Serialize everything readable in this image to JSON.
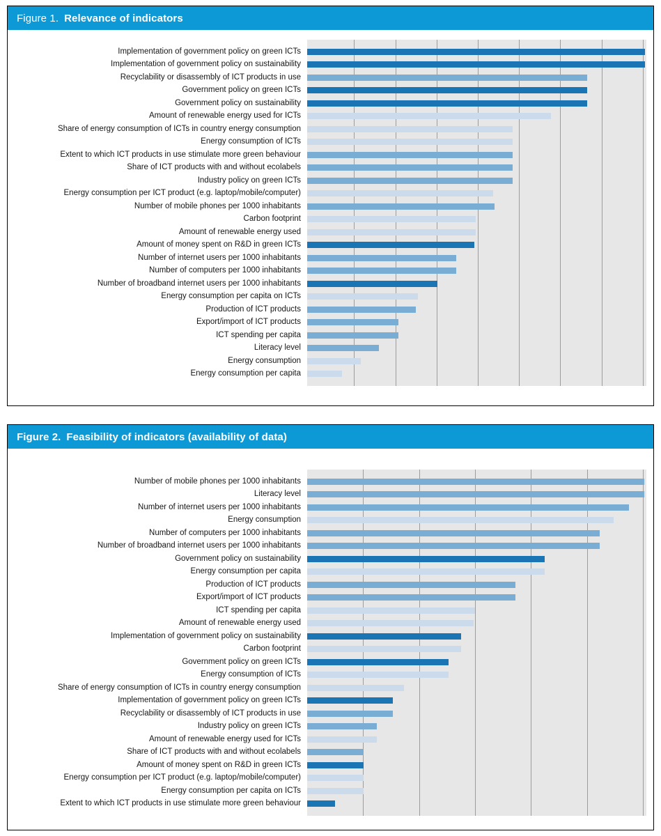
{
  "palette": {
    "header_blue": "#0d99d6",
    "bar_dark": "#1b74b3",
    "bar_medium": "#7aadd4",
    "bar_light": "#ccdbeb",
    "plot_bg": "#e7e7e7",
    "gridline": "#9c9c9c",
    "panel_border": "#000000",
    "header_text": "#ffffff"
  },
  "figures": [
    {
      "label": "Figure 1.",
      "title": "Relevance of indicators"
    },
    {
      "label": "Figure 2.",
      "title": "Feasibility of indicators (availability of data)"
    }
  ],
  "chart_data": [
    {
      "type": "bar",
      "orientation": "horizontal",
      "title": "Figure 1. Relevance of indicators",
      "xlabel": "",
      "ylabel": "",
      "legend": "none",
      "grid": true,
      "value_axis": {
        "range_percent_of_plot_width": [
          0,
          100
        ],
        "tick_labels_visible": false
      },
      "gridline_percents": [
        13.8,
        26.0,
        38.1,
        50.3,
        62.5,
        74.6,
        86.8,
        99.0
      ],
      "categories": [
        "Implementation of government policy on green ICTs",
        "Implementation of government policy on sustainability",
        "Recyclability or disassembly of ICT products in use",
        "Government policy on green ICTs",
        "Government policy on sustainability",
        "Amount of renewable energy used for ICTs",
        "Share of energy consumption of ICTs in country energy consumption",
        "Energy consumption of ICTs",
        "Extent to which ICT products in use stimulate more green behaviour",
        "Share of ICT products with and without ecolabels",
        "Industry policy on green ICTs",
        "Energy consumption per ICT product (e.g. laptop/mobile/computer)",
        "Number of mobile phones per 1000 inhabitants",
        "Carbon footprint",
        "Amount of renewable energy used",
        "Amount of money spent on R&D in green ICTs",
        "Number of internet users per 1000 inhabitants",
        "Number of computers per 1000 inhabitants",
        "Number of broadband internet users per 1000 inhabitants",
        "Energy consumption per capita on ICTs",
        "Production of ICT products",
        "Export/import of ICT products",
        "ICT spending per capita",
        "Literacy level",
        "Energy consumption",
        "Energy consumption per capita"
      ],
      "values": [
        99.6,
        99.6,
        82.5,
        82.5,
        82.5,
        71.8,
        60.6,
        60.6,
        60.6,
        60.6,
        60.6,
        54.8,
        55.2,
        49.7,
        49.7,
        49.3,
        43.9,
        43.9,
        38.4,
        32.6,
        32.0,
        26.8,
        27.0,
        21.2,
        15.9,
        10.3
      ],
      "colors": [
        "dark",
        "dark",
        "medium",
        "dark",
        "dark",
        "light",
        "light",
        "light",
        "medium",
        "medium",
        "medium",
        "light",
        "medium",
        "light",
        "light",
        "dark",
        "medium",
        "medium",
        "dark",
        "light",
        "medium",
        "medium",
        "medium",
        "medium",
        "light",
        "light"
      ]
    },
    {
      "type": "bar",
      "orientation": "horizontal",
      "title": "Figure 2. Feasibility of indicators (availability of data)",
      "xlabel": "",
      "ylabel": "",
      "legend": "none",
      "grid": true,
      "value_axis": {
        "range_percent_of_plot_width": [
          0,
          100
        ],
        "tick_labels_visible": false
      },
      "gridline_percents": [
        16.5,
        33.0,
        49.5,
        66.0,
        82.5,
        99.0
      ],
      "categories": [
        "Number of mobile phones per 1000 inhabitants",
        "Literacy level",
        "Number of internet users per 1000 inhabitants",
        "Energy consumption",
        "Number of computers per 1000 inhabitants",
        "Number of broadband internet users per 1000 inhabitants",
        "Government policy on sustainability",
        "Energy consumption per capita",
        "Production of ICT products",
        "Export/import of ICT products",
        "ICT spending per capita",
        "Amount of renewable energy used",
        "Implementation of government policy on sustainability",
        "Carbon footprint",
        "Government policy on green ICTs",
        "Energy consumption of ICTs",
        "Share of energy consumption of ICTs in country energy consumption",
        "Implementation of government policy on green ICTs",
        "Recyclability or disassembly of ICT products in use",
        "Industry policy on green ICTs",
        "Amount of renewable energy used for ICTs",
        "Share of ICT products with and without ecolabels",
        "Amount of money spent on R&D in green ICTs",
        "Energy consumption per ICT product (e.g. laptop/mobile/computer)",
        "Energy consumption per capita on ICTs",
        "Extent to which ICT products in use stimulate more green behaviour"
      ],
      "values": [
        99.4,
        99.4,
        94.8,
        90.3,
        86.2,
        86.2,
        70.1,
        70.1,
        61.4,
        61.4,
        49.5,
        49.1,
        45.4,
        45.4,
        41.7,
        41.7,
        28.5,
        25.2,
        25.2,
        20.6,
        20.6,
        16.7,
        16.7,
        16.7,
        16.7,
        8.2
      ],
      "colors": [
        "medium",
        "medium",
        "medium",
        "light",
        "medium",
        "medium",
        "dark",
        "light",
        "medium",
        "medium",
        "light",
        "light",
        "dark",
        "light",
        "dark",
        "light",
        "light",
        "dark",
        "medium",
        "medium",
        "light",
        "medium",
        "dark",
        "light",
        "light",
        "dark"
      ]
    }
  ]
}
